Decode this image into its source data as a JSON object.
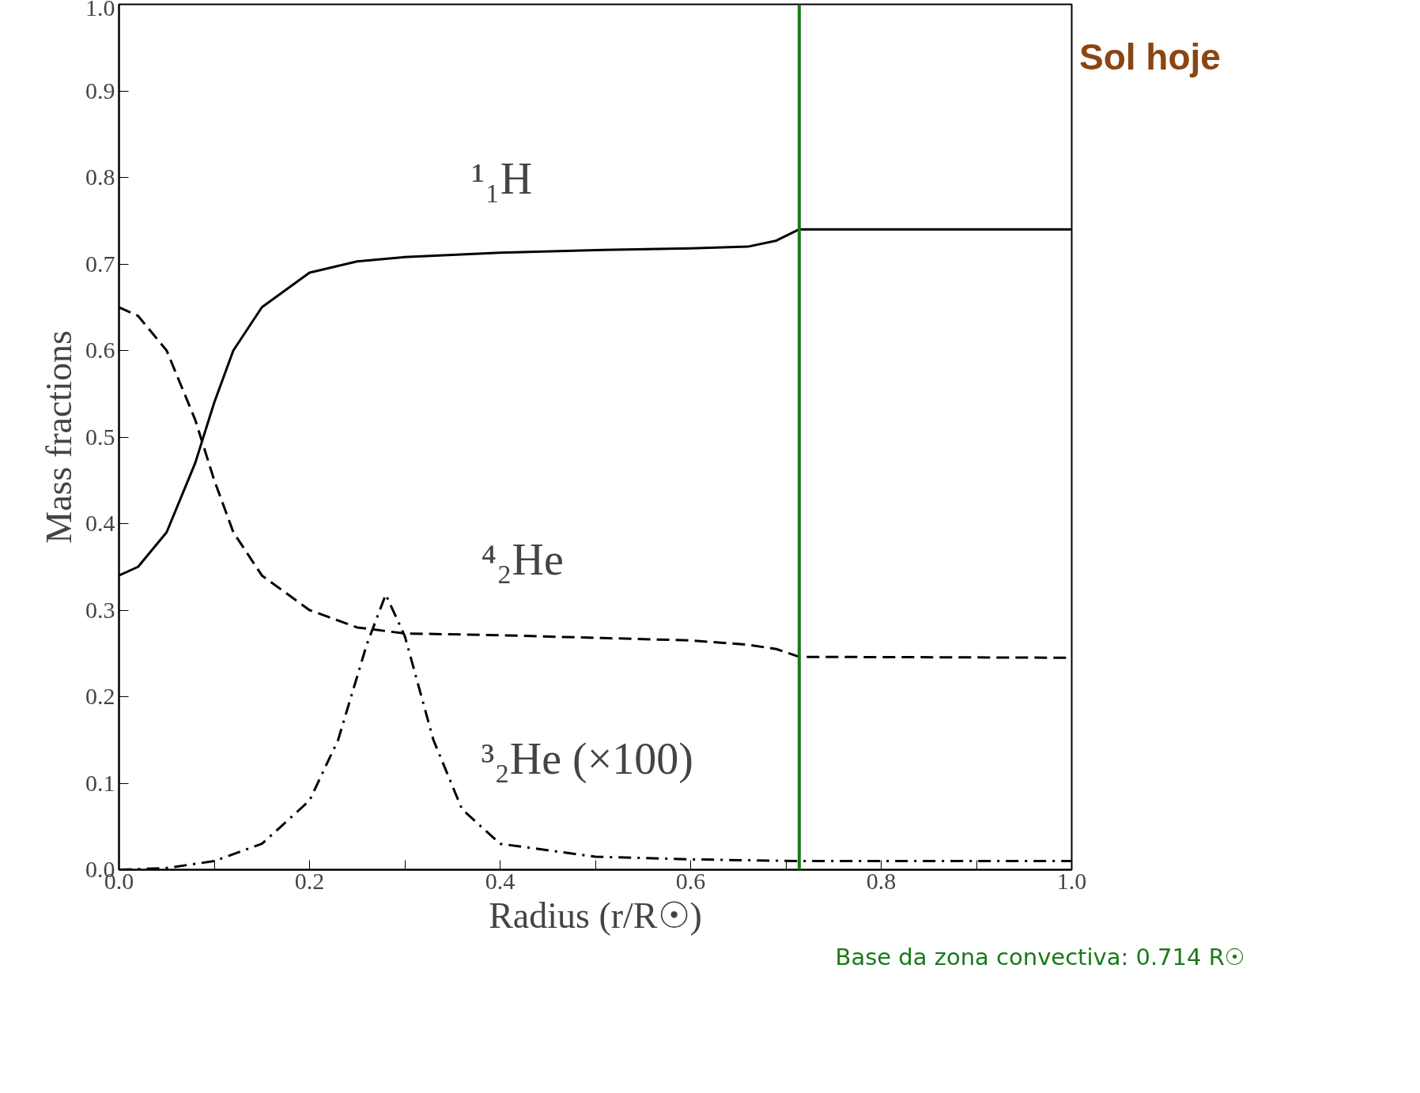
{
  "chart_data": {
    "type": "line",
    "xlabel": "Radius (r/R☉)",
    "ylabel": "Mass fractions",
    "xlim": [
      0,
      1
    ],
    "ylim": [
      0,
      1
    ],
    "xticks": [
      {
        "value": 0,
        "label": "0.0"
      },
      {
        "value": 0.1,
        "label": null
      },
      0.2,
      {
        "value": 0.3,
        "label": null
      },
      0.4,
      {
        "value": 0.5,
        "label": null
      },
      0.6,
      {
        "value": 0.7,
        "label": null
      },
      0.8,
      {
        "value": 0.9,
        "label": null
      },
      {
        "value": 1,
        "label": "1.0"
      }
    ],
    "yticks": [
      {
        "value": 0,
        "label": "0.0"
      },
      0.1,
      0.2,
      0.3,
      0.4,
      0.5,
      0.6,
      0.7,
      0.8,
      0.9,
      {
        "value": 1,
        "label": "1.0"
      }
    ],
    "x": [
      0,
      0.02,
      0.05,
      0.08,
      0.1,
      0.12,
      0.15,
      0.2,
      0.25,
      0.3,
      0.4,
      0.5,
      0.6,
      0.66,
      0.69,
      0.714,
      1.0
    ],
    "series": [
      {
        "color": "#000000",
        "line_style": "solid",
        "values": [
          0.34,
          0.35,
          0.39,
          0.47,
          0.54,
          0.6,
          0.65,
          0.69,
          0.703,
          0.708,
          0.713,
          0.716,
          0.718,
          0.72,
          0.727,
          0.74,
          0.74
        ]
      },
      {
        "color": "#000000",
        "line_style": "dashed",
        "values": [
          0.65,
          0.64,
          0.6,
          0.52,
          0.45,
          0.39,
          0.34,
          0.3,
          0.28,
          0.273,
          0.271,
          0.268,
          0.265,
          0.26,
          0.255,
          0.246,
          0.245
        ]
      },
      {
        "color": "#000000",
        "line_style": "dashdot",
        "x": [
          0,
          0.05,
          0.1,
          0.15,
          0.2,
          0.23,
          0.26,
          0.28,
          0.3,
          0.33,
          0.36,
          0.4,
          0.5,
          0.6,
          0.714,
          1.0
        ],
        "values": [
          0,
          0.002,
          0.01,
          0.03,
          0.08,
          0.15,
          0.26,
          0.318,
          0.27,
          0.15,
          0.07,
          0.03,
          0.015,
          0.012,
          0.01,
          0.01
        ]
      }
    ],
    "ref_lines": [
      {
        "axis": "x",
        "value": 0.714,
        "label": "Base da zona convectiva: 0.714 R☉",
        "color": "#1a7a1a"
      }
    ],
    "annotations": [
      "¹₁H",
      "⁴₂He",
      "³₂He (×100)",
      "Sol hoje"
    ]
  }
}
